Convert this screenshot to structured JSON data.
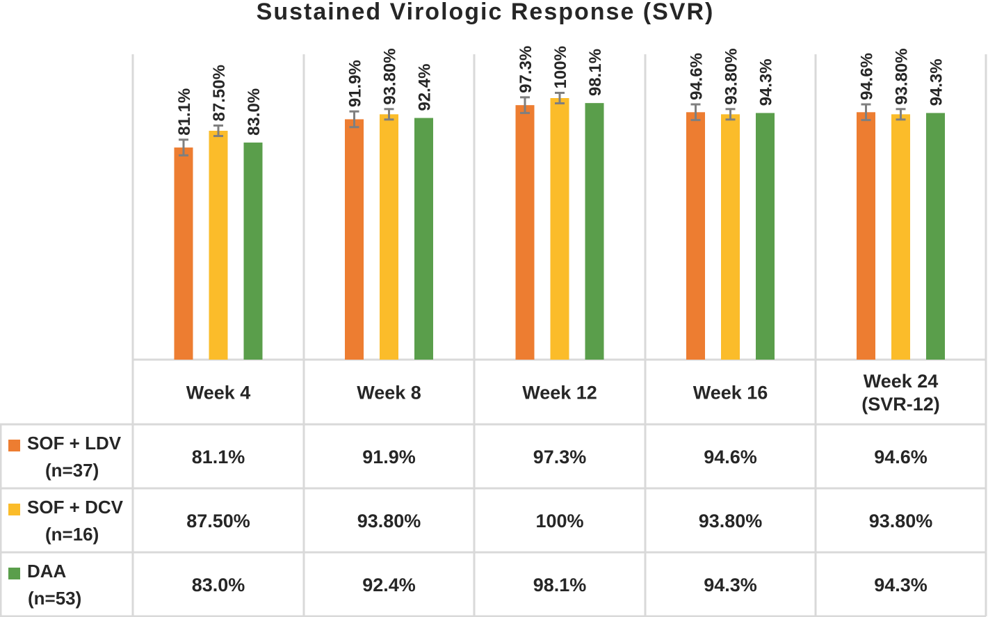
{
  "chart_data": {
    "type": "bar",
    "title": "Sustained Virologic Response (SVR)",
    "categories": [
      [
        "Week 4"
      ],
      [
        "Week 8"
      ],
      [
        "Week 12"
      ],
      [
        "Week 16"
      ],
      [
        "Week 24",
        "(SVR-12)"
      ]
    ],
    "ylim": [
      0,
      100
    ],
    "series": [
      {
        "name": [
          "SOF + LDV",
          "(n=37)"
        ],
        "color": "#ed7d31",
        "values": [
          81.1,
          91.9,
          97.3,
          94.6,
          94.6
        ],
        "labels": [
          "81.1%",
          "91.9%",
          "97.3%",
          "94.6%",
          "94.6%"
        ],
        "error": [
          3,
          3,
          3,
          3,
          3
        ],
        "error_bars": true
      },
      {
        "name": [
          "SOF + DCV",
          "(n=16)"
        ],
        "color": "#fbbc2a",
        "values": [
          87.5,
          93.8,
          100,
          93.8,
          93.8
        ],
        "labels": [
          "87.50%",
          "93.80%",
          "100%",
          "93.80%",
          "93.80%"
        ],
        "error": [
          2,
          2,
          2,
          2,
          2
        ],
        "error_bars": true
      },
      {
        "name": [
          "DAA",
          "(n=53)"
        ],
        "color": "#5a9e4b",
        "values": [
          83.0,
          92.4,
          98.1,
          94.3,
          94.3
        ],
        "labels": [
          "83.0%",
          "92.4%",
          "98.1%",
          "94.3%",
          "94.3%"
        ],
        "error_bars": false
      }
    ]
  }
}
